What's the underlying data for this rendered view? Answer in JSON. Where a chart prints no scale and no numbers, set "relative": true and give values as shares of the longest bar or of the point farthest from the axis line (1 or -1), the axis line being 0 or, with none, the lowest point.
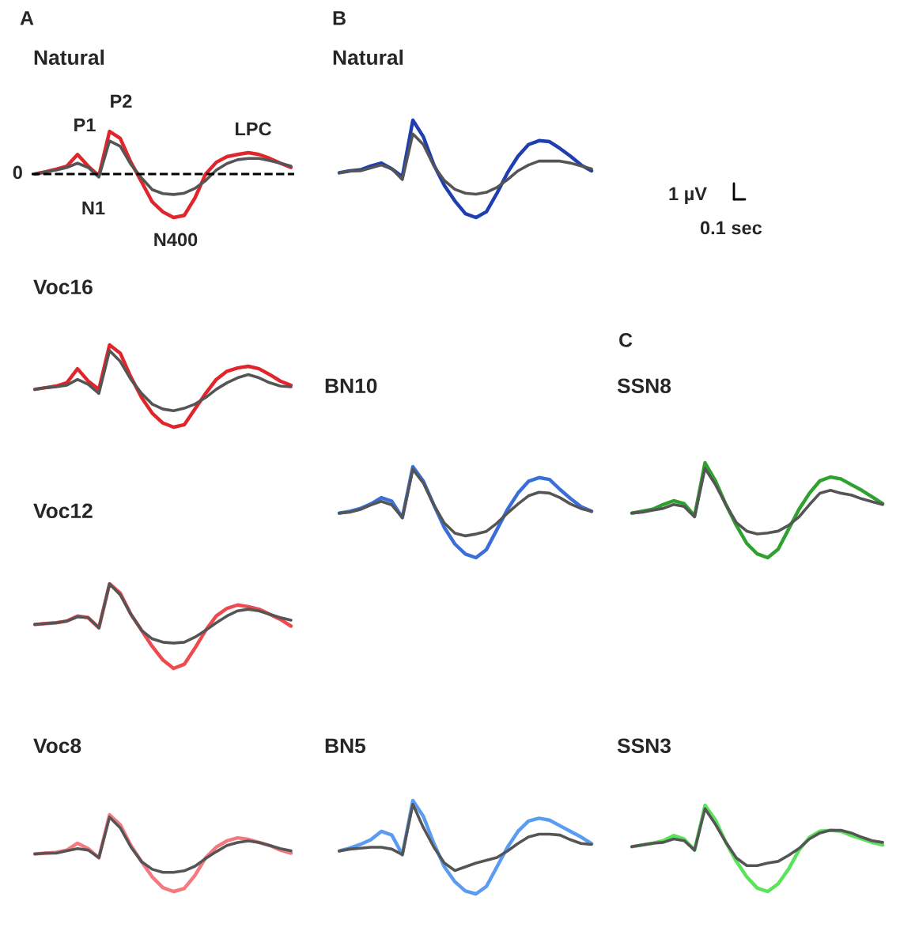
{
  "chart_data": [
    {
      "type": "line",
      "title": "Natural",
      "relative": true,
      "tick_labels": false,
      "categories": [
        null,
        null,
        null,
        null,
        null,
        null,
        null,
        null,
        null,
        null,
        null,
        null,
        null,
        null,
        null,
        null,
        null,
        null,
        null,
        null,
        null,
        null,
        null,
        null,
        null
      ],
      "series": [
        {
          "color": "#e0262b",
          "values": [
            0,
            0.05,
            0.11,
            0.18,
            0.45,
            0.18,
            -0.04,
            0.98,
            0.82,
            0.27,
            -0.18,
            -0.64,
            -0.87,
            -1,
            -0.95,
            -0.55,
            0,
            0.27,
            0.4,
            0.45,
            0.49,
            0.45,
            0.36,
            0.25,
            0.15
          ]
        },
        {
          "color": "#555555",
          "values": [
            0,
            0.05,
            0.09,
            0.15,
            0.25,
            0.15,
            -0.07,
            0.76,
            0.64,
            0.22,
            -0.09,
            -0.36,
            -0.45,
            -0.47,
            -0.44,
            -0.33,
            -0.15,
            0.09,
            0.24,
            0.33,
            0.36,
            0.36,
            0.31,
            0.25,
            0.18
          ]
        }
      ],
      "ref_lines": [
        {
          "axis": "y",
          "value": 0,
          "label": "0",
          "color": "#000000",
          "line_style": "dashed"
        }
      ],
      "annotations": [
        "A",
        "P1",
        "P2",
        "N1",
        "N400",
        "LPC"
      ]
    },
    {
      "type": "line",
      "title": "Natural",
      "relative": true,
      "tick_labels": false,
      "categories": [
        null,
        null,
        null,
        null,
        null,
        null,
        null,
        null,
        null,
        null,
        null,
        null,
        null,
        null,
        null,
        null,
        null,
        null,
        null,
        null,
        null,
        null,
        null,
        null,
        null
      ],
      "series": [
        {
          "color": "#1f3fb0",
          "values": [
            0.46,
            0.48,
            0.49,
            0.53,
            0.56,
            0.5,
            0.42,
            1,
            0.83,
            0.54,
            0.33,
            0.17,
            0.04,
            0,
            0.06,
            0.25,
            0.46,
            0.63,
            0.75,
            0.79,
            0.78,
            0.71,
            0.63,
            0.54,
            0.48
          ]
        },
        {
          "color": "#555555",
          "values": [
            0.46,
            0.48,
            0.48,
            0.51,
            0.54,
            0.5,
            0.39,
            0.86,
            0.75,
            0.53,
            0.38,
            0.29,
            0.25,
            0.24,
            0.26,
            0.31,
            0.39,
            0.48,
            0.54,
            0.58,
            0.58,
            0.58,
            0.56,
            0.53,
            0.5
          ]
        }
      ],
      "annotations": [
        "B",
        "1 µV",
        "0.1 sec"
      ]
    },
    {
      "type": "line",
      "title": "Voc16",
      "relative": true,
      "tick_labels": false,
      "categories": [
        null,
        null,
        null,
        null,
        null,
        null,
        null,
        null,
        null,
        null,
        null,
        null,
        null,
        null,
        null,
        null,
        null,
        null,
        null,
        null,
        null,
        null,
        null,
        null,
        null
      ],
      "series": [
        {
          "color": "#e0262b",
          "values": [
            0.46,
            0.48,
            0.5,
            0.54,
            0.71,
            0.56,
            0.46,
            1,
            0.9,
            0.61,
            0.36,
            0.17,
            0.05,
            0,
            0.03,
            0.22,
            0.41,
            0.58,
            0.68,
            0.72,
            0.74,
            0.71,
            0.64,
            0.56,
            0.51
          ]
        },
        {
          "color": "#555555",
          "values": [
            0.46,
            0.48,
            0.49,
            0.51,
            0.58,
            0.52,
            0.41,
            0.93,
            0.8,
            0.58,
            0.41,
            0.28,
            0.22,
            0.2,
            0.23,
            0.28,
            0.36,
            0.46,
            0.54,
            0.6,
            0.64,
            0.6,
            0.54,
            0.5,
            0.49
          ]
        }
      ]
    },
    {
      "type": "line",
      "title": "BN10",
      "relative": true,
      "tick_labels": false,
      "categories": [
        null,
        null,
        null,
        null,
        null,
        null,
        null,
        null,
        null,
        null,
        null,
        null,
        null,
        null,
        null,
        null,
        null,
        null,
        null,
        null,
        null,
        null,
        null,
        null,
        null
      ],
      "series": [
        {
          "color": "#3a6fd8",
          "values": [
            0.49,
            0.51,
            0.54,
            0.59,
            0.66,
            0.62,
            0.44,
            1,
            0.84,
            0.58,
            0.33,
            0.15,
            0.04,
            0,
            0.09,
            0.31,
            0.53,
            0.71,
            0.84,
            0.88,
            0.86,
            0.75,
            0.65,
            0.56,
            0.51
          ]
        },
        {
          "color": "#555555",
          "values": [
            0.49,
            0.5,
            0.53,
            0.58,
            0.62,
            0.58,
            0.44,
            0.97,
            0.82,
            0.58,
            0.38,
            0.27,
            0.24,
            0.26,
            0.29,
            0.38,
            0.49,
            0.59,
            0.68,
            0.72,
            0.71,
            0.66,
            0.59,
            0.54,
            0.51
          ]
        }
      ]
    },
    {
      "type": "line",
      "title": "SSN8",
      "relative": true,
      "tick_labels": false,
      "categories": [
        null,
        null,
        null,
        null,
        null,
        null,
        null,
        null,
        null,
        null,
        null,
        null,
        null,
        null,
        null,
        null,
        null,
        null,
        null,
        null,
        null,
        null,
        null,
        null,
        null
      ],
      "series": [
        {
          "color": "#2ea12e",
          "values": [
            0.47,
            0.49,
            0.51,
            0.56,
            0.6,
            0.57,
            0.44,
            1,
            0.81,
            0.56,
            0.34,
            0.15,
            0.04,
            0,
            0.09,
            0.3,
            0.51,
            0.68,
            0.81,
            0.85,
            0.83,
            0.77,
            0.71,
            0.64,
            0.57
          ]
        },
        {
          "color": "#555555",
          "values": [
            0.47,
            0.48,
            0.5,
            0.52,
            0.56,
            0.54,
            0.43,
            0.94,
            0.77,
            0.56,
            0.37,
            0.28,
            0.25,
            0.26,
            0.28,
            0.34,
            0.43,
            0.56,
            0.68,
            0.71,
            0.68,
            0.66,
            0.62,
            0.59,
            0.56
          ]
        }
      ],
      "annotations": [
        "C"
      ]
    },
    {
      "type": "line",
      "title": "Voc12",
      "relative": true,
      "tick_labels": false,
      "categories": [
        null,
        null,
        null,
        null,
        null,
        null,
        null,
        null,
        null,
        null,
        null,
        null,
        null,
        null,
        null,
        null,
        null,
        null,
        null,
        null,
        null,
        null,
        null,
        null,
        null
      ],
      "series": [
        {
          "color": "#ee4b50",
          "values": [
            0.52,
            0.53,
            0.54,
            0.56,
            0.62,
            0.6,
            0.48,
            1,
            0.89,
            0.64,
            0.45,
            0.26,
            0.1,
            0,
            0.05,
            0.24,
            0.45,
            0.62,
            0.71,
            0.75,
            0.73,
            0.7,
            0.64,
            0.58,
            0.5
          ]
        },
        {
          "color": "#555555",
          "values": [
            0.52,
            0.53,
            0.54,
            0.56,
            0.61,
            0.6,
            0.48,
            1,
            0.87,
            0.64,
            0.45,
            0.35,
            0.31,
            0.3,
            0.31,
            0.37,
            0.45,
            0.54,
            0.62,
            0.68,
            0.7,
            0.68,
            0.64,
            0.6,
            0.57
          ]
        }
      ]
    },
    {
      "type": "line",
      "title": "Voc8",
      "relative": true,
      "tick_labels": false,
      "categories": [
        null,
        null,
        null,
        null,
        null,
        null,
        null,
        null,
        null,
        null,
        null,
        null,
        null,
        null,
        null,
        null,
        null,
        null,
        null,
        null,
        null,
        null,
        null,
        null,
        null
      ],
      "series": [
        {
          "color": "#f47a80",
          "values": [
            0.49,
            0.5,
            0.51,
            0.54,
            0.63,
            0.56,
            0.44,
            1,
            0.87,
            0.6,
            0.39,
            0.19,
            0.05,
            0,
            0.04,
            0.21,
            0.44,
            0.58,
            0.66,
            0.7,
            0.68,
            0.64,
            0.6,
            0.54,
            0.5
          ]
        },
        {
          "color": "#555555",
          "values": [
            0.49,
            0.5,
            0.5,
            0.53,
            0.56,
            0.54,
            0.44,
            0.97,
            0.83,
            0.58,
            0.39,
            0.29,
            0.25,
            0.25,
            0.27,
            0.33,
            0.43,
            0.52,
            0.6,
            0.64,
            0.66,
            0.64,
            0.6,
            0.56,
            0.53
          ]
        }
      ]
    },
    {
      "type": "line",
      "title": "BN5",
      "relative": true,
      "tick_labels": false,
      "categories": [
        null,
        null,
        null,
        null,
        null,
        null,
        null,
        null,
        null,
        null,
        null,
        null,
        null,
        null,
        null,
        null,
        null,
        null,
        null,
        null,
        null,
        null,
        null,
        null,
        null
      ],
      "series": [
        {
          "color": "#5b9cf0",
          "values": [
            0.46,
            0.49,
            0.53,
            0.58,
            0.67,
            0.63,
            0.42,
            1,
            0.83,
            0.54,
            0.29,
            0.13,
            0.03,
            0,
            0.08,
            0.29,
            0.5,
            0.67,
            0.78,
            0.81,
            0.79,
            0.73,
            0.67,
            0.61,
            0.54
          ]
        },
        {
          "color": "#555555",
          "values": [
            0.46,
            0.48,
            0.49,
            0.5,
            0.5,
            0.48,
            0.42,
            0.96,
            0.71,
            0.5,
            0.33,
            0.25,
            0.29,
            0.33,
            0.36,
            0.39,
            0.46,
            0.54,
            0.61,
            0.64,
            0.64,
            0.63,
            0.58,
            0.54,
            0.53
          ]
        }
      ]
    },
    {
      "type": "line",
      "title": "SSN3",
      "relative": true,
      "tick_labels": false,
      "categories": [
        null,
        null,
        null,
        null,
        null,
        null,
        null,
        null,
        null,
        null,
        null,
        null,
        null,
        null,
        null,
        null,
        null,
        null,
        null,
        null,
        null,
        null,
        null,
        null,
        null
      ],
      "series": [
        {
          "color": "#5be35b",
          "values": [
            0.52,
            0.54,
            0.56,
            0.59,
            0.65,
            0.61,
            0.48,
            1,
            0.83,
            0.57,
            0.35,
            0.17,
            0.04,
            0,
            0.09,
            0.26,
            0.48,
            0.63,
            0.7,
            0.71,
            0.7,
            0.65,
            0.61,
            0.57,
            0.54
          ]
        },
        {
          "color": "#555555",
          "values": [
            0.52,
            0.54,
            0.56,
            0.57,
            0.61,
            0.59,
            0.48,
            0.96,
            0.78,
            0.57,
            0.39,
            0.3,
            0.3,
            0.33,
            0.35,
            0.42,
            0.5,
            0.61,
            0.68,
            0.71,
            0.71,
            0.68,
            0.63,
            0.59,
            0.57
          ]
        }
      ]
    }
  ]
}
